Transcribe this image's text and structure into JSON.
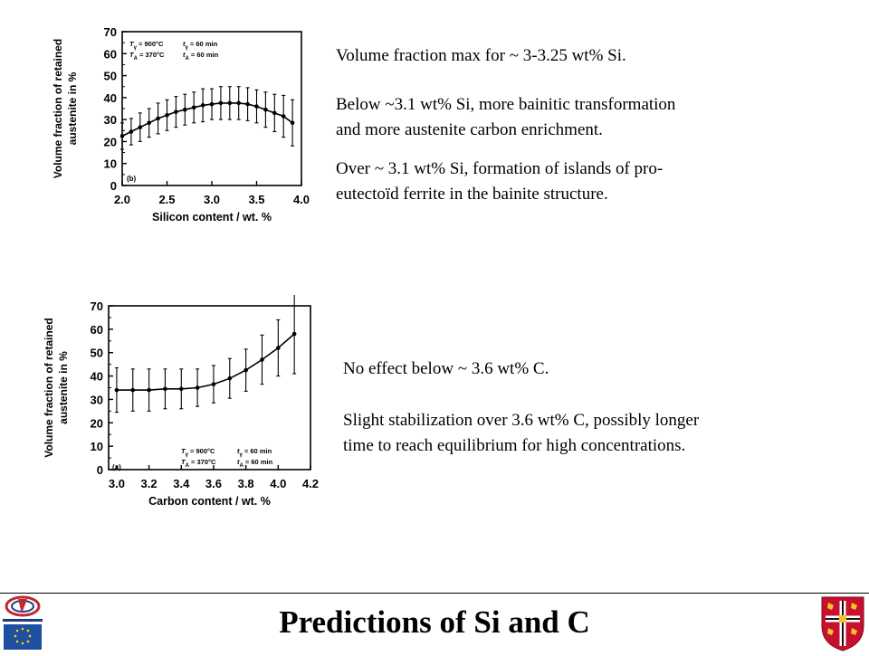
{
  "slide": {
    "title": "Predictions of Si and C",
    "top_text": {
      "p1": "Volume fraction max for ~ 3-3.25 wt% Si.",
      "p2a": "Below ~3.1 wt% Si, more bainitic transformation",
      "p2b": "and more austenite carbon enrichment.",
      "p3a": "Over ~ 3.1 wt% Si, formation of islands of pro-",
      "p3b": "eutectoïd ferrite in the bainite structure."
    },
    "bottom_text": {
      "p1": "No effect below ~ 3.6 wt% C.",
      "p2a": "Slight stabilization over 3.6 wt% C, possibly longer",
      "p2b": "time to reach equilibrium for high concentrations."
    }
  },
  "chart_data": [
    {
      "type": "line",
      "panel": "(b)",
      "xlabel": "Silicon content  / wt. %",
      "ylabel_line1": "Volume fraction of retained",
      "ylabel_line2": "austenite in %",
      "xlim": [
        2.0,
        4.0
      ],
      "ylim": [
        0,
        70
      ],
      "xticks": [
        "2.0",
        "2.5",
        "3.0",
        "3.5",
        "4.0"
      ],
      "yticks": [
        "0",
        "10",
        "20",
        "30",
        "40",
        "50",
        "60",
        "70"
      ],
      "conditions": {
        "l1a_sym": "T",
        "l1a_sub": "γ",
        "l1a_val": " = 900°C",
        "l1b_sym": "t",
        "l1b_sub": "γ",
        "l1b_val": " = 60 min",
        "l2a_sym": "T",
        "l2a_sub": "A",
        "l2a_val": " = 370°C",
        "l2b_sym": "t",
        "l2b_sub": "A",
        "l2b_val": " = 60 min"
      },
      "x": [
        2.0,
        2.1,
        2.2,
        2.3,
        2.4,
        2.5,
        2.6,
        2.7,
        2.8,
        2.9,
        3.0,
        3.1,
        3.2,
        3.3,
        3.4,
        3.5,
        3.6,
        3.7,
        3.8,
        3.9
      ],
      "y": [
        22.5,
        24.5,
        26.5,
        28.5,
        30.5,
        32,
        33.5,
        34.5,
        35.5,
        36.5,
        37,
        37.5,
        37.5,
        37.5,
        37,
        36,
        34.5,
        33,
        31.5,
        28.5
      ],
      "err": [
        6,
        6,
        6.5,
        6.5,
        7,
        7,
        7,
        7,
        7,
        7.5,
        7,
        7.5,
        7.5,
        7.5,
        7.5,
        7.5,
        8,
        8.5,
        9.5,
        10.5
      ]
    },
    {
      "type": "line",
      "panel": "(a)",
      "xlabel": "Carbon content  / wt. %",
      "ylabel_line1": "Volume fraction of retained",
      "ylabel_line2": "austenite in %",
      "xlim": [
        2.95,
        4.2
      ],
      "ylim": [
        0,
        70
      ],
      "xticks": [
        "3.0",
        "3.2",
        "3.4",
        "3.6",
        "3.8",
        "4.0",
        "4.2"
      ],
      "yticks": [
        "0",
        "10",
        "20",
        "30",
        "40",
        "50",
        "60",
        "70"
      ],
      "conditions": {
        "l1a_sym": "T",
        "l1a_sub": "γ",
        "l1a_val": " = 900°C",
        "l1b_sym": "t",
        "l1b_sub": "γ",
        "l1b_val": " = 60 min",
        "l2a_sym": "T",
        "l2a_sub": "A",
        "l2a_val": " = 370°C",
        "l2b_sym": "t",
        "l2b_sub": "A",
        "l2b_val": " = 60 min"
      },
      "x": [
        3.0,
        3.1,
        3.2,
        3.3,
        3.4,
        3.5,
        3.6,
        3.7,
        3.8,
        3.9,
        4.0,
        4.1
      ],
      "y": [
        34,
        34,
        34,
        34.5,
        34.5,
        35,
        36.5,
        39,
        42.5,
        47,
        52,
        58
      ],
      "err": [
        9.5,
        9,
        9,
        8.5,
        8.5,
        8,
        8,
        8.5,
        9,
        10.5,
        12,
        17
      ]
    }
  ]
}
